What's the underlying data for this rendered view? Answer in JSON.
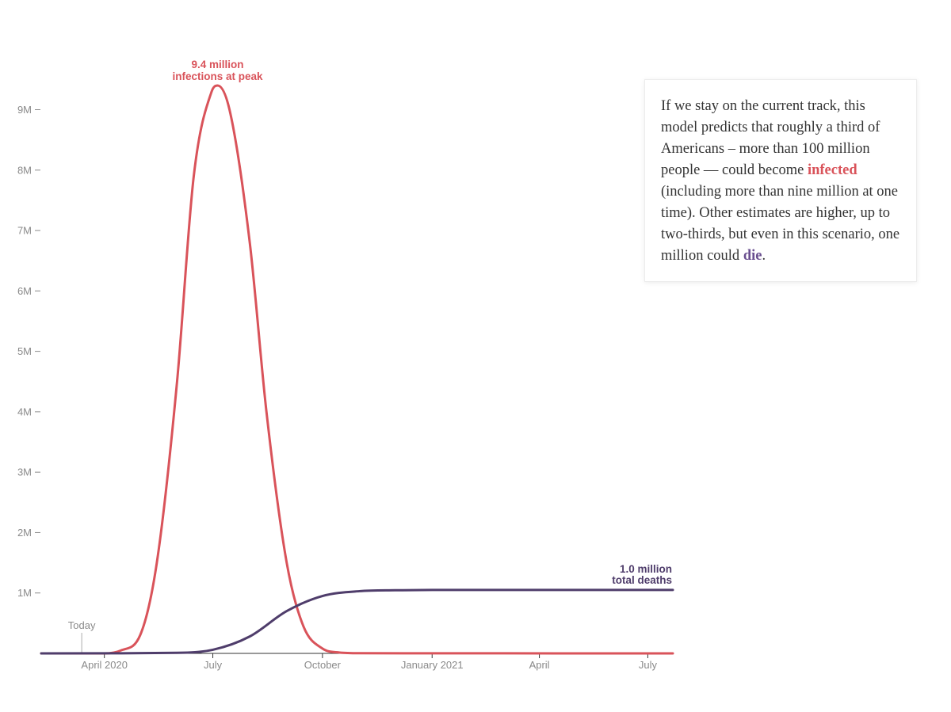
{
  "chart_data": {
    "type": "line",
    "x_axis": {
      "ticks": [
        {
          "date": "2020-04-01",
          "label": "April 2020"
        },
        {
          "date": "2020-07-01",
          "label": "July"
        },
        {
          "date": "2020-10-01",
          "label": "October"
        },
        {
          "date": "2021-01-01",
          "label": "January 2021"
        },
        {
          "date": "2021-04-01",
          "label": "April"
        },
        {
          "date": "2021-07-01",
          "label": "July"
        }
      ],
      "range": [
        "2020-02-08",
        "2021-07-22"
      ]
    },
    "y_axis": {
      "ticks": [
        {
          "value": 1000000,
          "label": "1M"
        },
        {
          "value": 2000000,
          "label": "2M"
        },
        {
          "value": 3000000,
          "label": "3M"
        },
        {
          "value": 4000000,
          "label": "4M"
        },
        {
          "value": 5000000,
          "label": "5M"
        },
        {
          "value": 6000000,
          "label": "6M"
        },
        {
          "value": 7000000,
          "label": "7M"
        },
        {
          "value": 8000000,
          "label": "8M"
        },
        {
          "value": 9000000,
          "label": "9M"
        }
      ],
      "range": [
        0,
        9400000
      ]
    },
    "grid": false,
    "series": [
      {
        "key": "infections",
        "color": "#d9535a",
        "points": [
          [
            "2020-02-08",
            0
          ],
          [
            "2020-04-01",
            0
          ],
          [
            "2020-04-15",
            50000
          ],
          [
            "2020-05-01",
            300000
          ],
          [
            "2020-05-15",
            1500000
          ],
          [
            "2020-06-01",
            4500000
          ],
          [
            "2020-06-15",
            7900000
          ],
          [
            "2020-06-30",
            9300000
          ],
          [
            "2020-07-05",
            9400000
          ],
          [
            "2020-07-15",
            9000000
          ],
          [
            "2020-08-01",
            6800000
          ],
          [
            "2020-08-15",
            4000000
          ],
          [
            "2020-09-01",
            1500000
          ],
          [
            "2020-09-15",
            450000
          ],
          [
            "2020-10-01",
            80000
          ],
          [
            "2020-10-15",
            15000
          ],
          [
            "2020-11-01",
            3000
          ],
          [
            "2021-07-22",
            0
          ]
        ]
      },
      {
        "key": "deaths",
        "color": "#4f3d6b",
        "points": [
          [
            "2020-02-08",
            0
          ],
          [
            "2020-06-01",
            10000
          ],
          [
            "2020-07-01",
            60000
          ],
          [
            "2020-08-01",
            280000
          ],
          [
            "2020-09-01",
            700000
          ],
          [
            "2020-10-01",
            950000
          ],
          [
            "2020-11-01",
            1030000
          ],
          [
            "2020-12-01",
            1045000
          ],
          [
            "2021-01-01",
            1050000
          ],
          [
            "2021-07-22",
            1050000
          ]
        ]
      }
    ],
    "annotations": {
      "peak": {
        "line1": "9.4 million",
        "line2": "infections at peak",
        "date": "2020-07-05",
        "value": 9400000
      },
      "deaths": {
        "line1": "1.0 million",
        "line2": "total deaths"
      },
      "today": {
        "label": "Today",
        "date": "2020-03-13"
      }
    }
  },
  "callout": {
    "text_before": "If we stay on the current track, this model predicts that roughly a third of Americans – more than 100 million people — could become ",
    "infected_word": "infected",
    "text_middle": " (including more than nine million at one time). Other estimates are higher, up to two-thirds, but even in this scenario, one million could ",
    "die_word": "die",
    "text_after": "."
  }
}
